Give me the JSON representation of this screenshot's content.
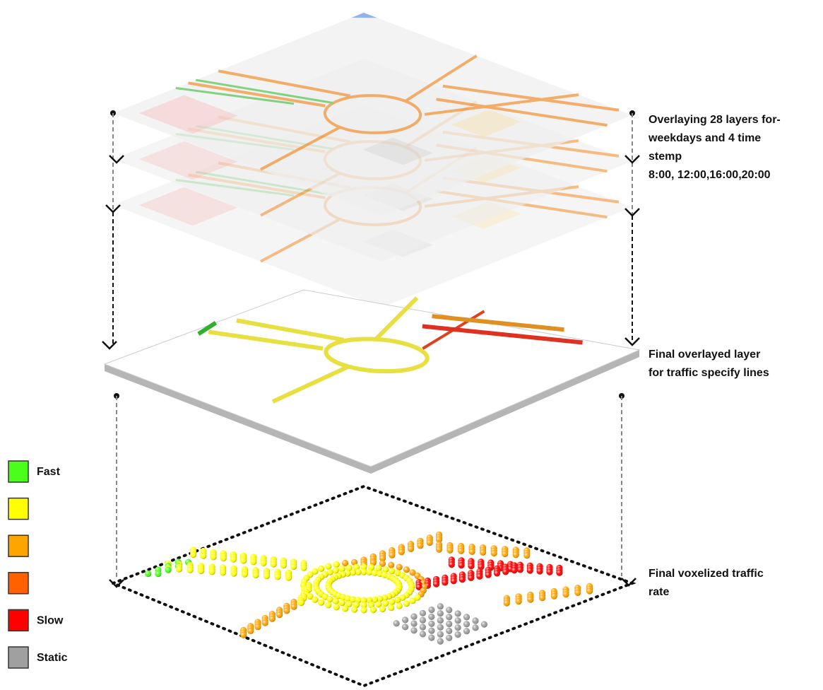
{
  "annotations": [
    {
      "lines": [
        "Overlaying 28 layers for-",
        "weekdays and 4  time",
        "stemp",
        "8:00, 12:00,16:00,20:00"
      ]
    },
    {
      "lines": [
        "Final overlayed layer",
        "for traffic specify lines"
      ]
    },
    {
      "lines": [
        "Final voxelized traffic",
        "rate"
      ]
    }
  ],
  "legend": [
    {
      "color": "#4cff1a",
      "label": "Fast"
    },
    {
      "color": "#ffff00"
    },
    {
      "color": "#ffa500"
    },
    {
      "color": "#ff6000"
    },
    {
      "color": "#ff0000",
      "label": "Slow"
    },
    {
      "color": "#a0a0a0",
      "label": "Static"
    }
  ]
}
